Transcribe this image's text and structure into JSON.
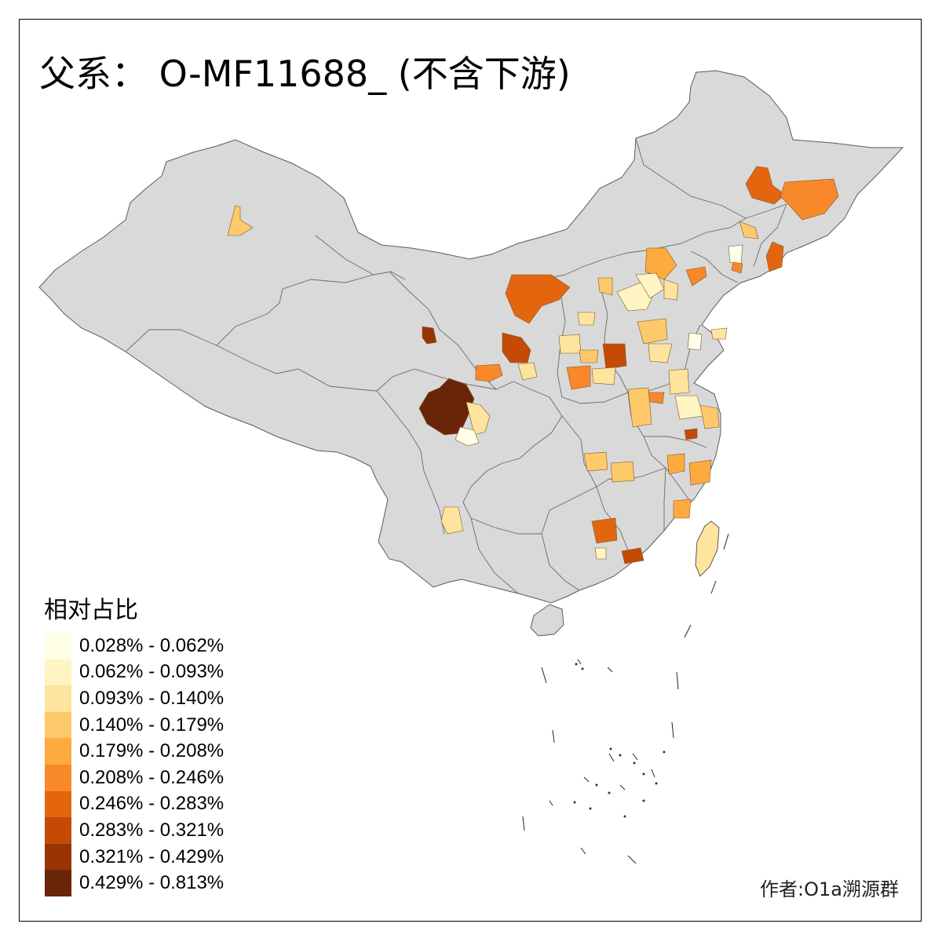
{
  "title": "父系： O-MF11688_ (不含下游)",
  "legend": {
    "title": "相对占比",
    "items": [
      {
        "label": "0.028% - 0.062%",
        "color": "#fffee6"
      },
      {
        "label": "0.062% - 0.093%",
        "color": "#fff4c2"
      },
      {
        "label": "0.093% - 0.140%",
        "color": "#fee49c"
      },
      {
        "label": "0.140% - 0.179%",
        "color": "#fec96a"
      },
      {
        "label": "0.179% - 0.208%",
        "color": "#fdab3e"
      },
      {
        "label": "0.208% - 0.246%",
        "color": "#f8882a"
      },
      {
        "label": "0.246% - 0.283%",
        "color": "#e3660f"
      },
      {
        "label": "0.283% - 0.321%",
        "color": "#c44a06"
      },
      {
        "label": "0.321% - 0.429%",
        "color": "#993503"
      },
      {
        "label": "0.429% - 0.813%",
        "color": "#6a2508"
      }
    ]
  },
  "credit": "作者:O1a溯源群",
  "colors": {
    "land": "#d9d9d9",
    "border": "#5a5a5a",
    "background": "#ffffff"
  }
}
